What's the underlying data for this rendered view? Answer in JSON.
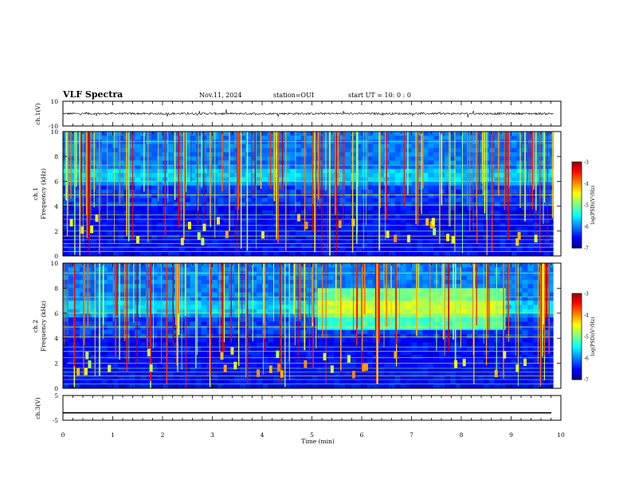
{
  "header": {
    "title": "VLF Spectra",
    "date": "Nov.11, 2024",
    "station": "station=OUI",
    "start": "start UT = 10: 0 : 0"
  },
  "chart_data": [
    {
      "type": "line",
      "name": "waveform-ch1",
      "ylabel": "ch.1(V)",
      "ylim": [
        -10,
        10
      ],
      "ytick_labels": [
        "10",
        "-10"
      ],
      "description_level": 0,
      "x_range_min": [
        0,
        9.85
      ]
    },
    {
      "type": "heatmap",
      "name": "spectrogram-ch1",
      "ylabel_lines": [
        "ch.1",
        "Frequency (kHz)"
      ],
      "xlim": [
        0,
        10
      ],
      "ylim": [
        0,
        10
      ],
      "ytick_labels": [
        "0",
        "2",
        "4",
        "6",
        "8",
        "10"
      ],
      "colorbar": {
        "label": "log(PSD)(V²/Hz)",
        "range": [
          -7,
          -3
        ],
        "tick_labels": [
          "-3",
          "-4",
          "-5",
          "-6",
          "-7"
        ]
      }
    },
    {
      "type": "heatmap",
      "name": "spectrogram-ch2",
      "ylabel_lines": [
        "ch.2",
        "Frequency (kHz)"
      ],
      "xlim": [
        0,
        10
      ],
      "ylim": [
        0,
        10
      ],
      "ytick_labels": [
        "0",
        "2",
        "4",
        "6",
        "8",
        "10"
      ],
      "colorbar": {
        "label": "log(PSD)(V²/Hz)",
        "range": [
          -7,
          -3
        ],
        "tick_labels": [
          "-3",
          "-4",
          "-5",
          "-6",
          "-7"
        ]
      }
    },
    {
      "type": "line",
      "name": "waveform-ch3",
      "ylabel": "ch.3(V)",
      "ylim": [
        -5,
        5
      ],
      "ytick_labels": [
        "5",
        "-5"
      ],
      "level": -2
    }
  ],
  "xaxis": {
    "label": "Time (min)",
    "tick_labels": [
      "0",
      "1",
      "2",
      "3",
      "4",
      "5",
      "6",
      "7",
      "8",
      "9",
      "10"
    ]
  }
}
